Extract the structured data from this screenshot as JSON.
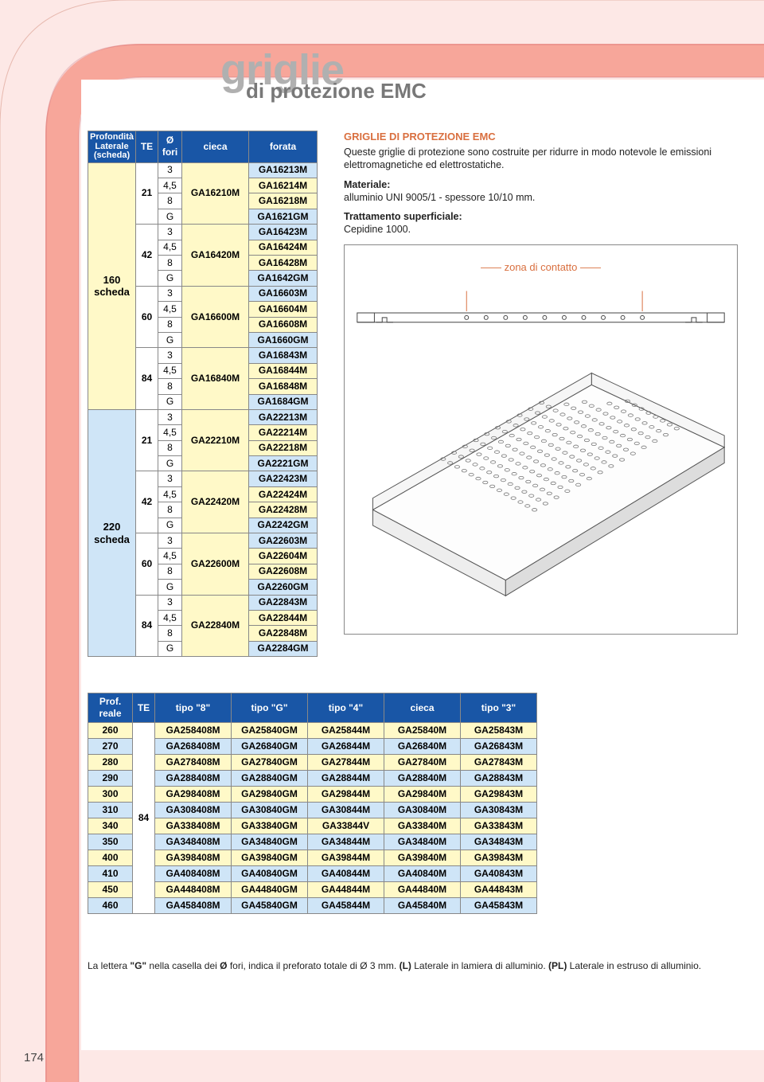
{
  "title_main": "griglie",
  "title_sub": "di protezione EMC",
  "page_number": "174",
  "table1": {
    "headers": {
      "prof": "Profondità Laterale (scheda)",
      "te": "TE",
      "fori": "Ø fori",
      "cieca": "cieca",
      "forata": "forata"
    },
    "col_widths": {
      "prof": 58,
      "te": 28,
      "fori": 30,
      "cieca": 84,
      "forata": 86
    },
    "groups": [
      {
        "prof": "160 scheda",
        "prof_bg": "#fff9c8",
        "te_rows": [
          {
            "te": "21",
            "cieca": "GA16210M",
            "forata": [
              "GA16213M",
              "GA16214M",
              "GA16218M",
              "GA1621GM"
            ]
          },
          {
            "te": "42",
            "cieca": "GA16420M",
            "forata": [
              "GA16423M",
              "GA16424M",
              "GA16428M",
              "GA1642GM"
            ]
          },
          {
            "te": "60",
            "cieca": "GA16600M",
            "forata": [
              "GA16603M",
              "GA16604M",
              "GA16608M",
              "GA1660GM"
            ]
          },
          {
            "te": "84",
            "cieca": "GA16840M",
            "forata": [
              "GA16843M",
              "GA16844M",
              "GA16848M",
              "GA1684GM"
            ]
          }
        ]
      },
      {
        "prof": "220 scheda",
        "prof_bg": "#cfe5f7",
        "te_rows": [
          {
            "te": "21",
            "cieca": "GA22210M",
            "forata": [
              "GA22213M",
              "GA22214M",
              "GA22218M",
              "GA2221GM"
            ]
          },
          {
            "te": "42",
            "cieca": "GA22420M",
            "forata": [
              "GA22423M",
              "GA22424M",
              "GA22428M",
              "GA2242GM"
            ]
          },
          {
            "te": "60",
            "cieca": "GA22600M",
            "forata": [
              "GA22603M",
              "GA22604M",
              "GA22608M",
              "GA2260GM"
            ]
          },
          {
            "te": "84",
            "cieca": "GA22840M",
            "forata": [
              "GA22843M",
              "GA22844M",
              "GA22848M",
              "GA2284GM"
            ]
          }
        ]
      }
    ],
    "fori_seq": [
      "3",
      "4,5",
      "8",
      "G"
    ],
    "row_bg_seq": [
      "#cfe5f7",
      "#fff9c8",
      "#fff9c8",
      "#cfe5f7"
    ]
  },
  "table2": {
    "headers": {
      "prof": "Prof. reale",
      "te": "TE",
      "t8": "tipo \"8\"",
      "tg": "tipo \"G\"",
      "t4": "tipo \"4\"",
      "cieca": "cieca",
      "t3": "tipo \"3\""
    },
    "te": "84",
    "col_widths": {
      "prof": 56,
      "te": 28,
      "data": 96
    },
    "rows": [
      {
        "prof": "260",
        "bg": "#fff9c8",
        "d": [
          "GA258408M",
          "GA25840GM",
          "GA25844M",
          "GA25840M",
          "GA25843M"
        ]
      },
      {
        "prof": "270",
        "bg": "#cfe5f7",
        "d": [
          "GA268408M",
          "GA26840GM",
          "GA26844M",
          "GA26840M",
          "GA26843M"
        ]
      },
      {
        "prof": "280",
        "bg": "#fff9c8",
        "d": [
          "GA278408M",
          "GA27840GM",
          "GA27844M",
          "GA27840M",
          "GA27843M"
        ]
      },
      {
        "prof": "290",
        "bg": "#cfe5f7",
        "d": [
          "GA288408M",
          "GA28840GM",
          "GA28844M",
          "GA28840M",
          "GA28843M"
        ]
      },
      {
        "prof": "300",
        "bg": "#fff9c8",
        "d": [
          "GA298408M",
          "GA29840GM",
          "GA29844M",
          "GA29840M",
          "GA29843M"
        ]
      },
      {
        "prof": "310",
        "bg": "#cfe5f7",
        "d": [
          "GA308408M",
          "GA30840GM",
          "GA30844M",
          "GA30840M",
          "GA30843M"
        ]
      },
      {
        "prof": "340",
        "bg": "#fff9c8",
        "d": [
          "GA338408M",
          "GA33840GM",
          "GA33844V",
          "GA33840M",
          "GA33843M"
        ]
      },
      {
        "prof": "350",
        "bg": "#cfe5f7",
        "d": [
          "GA348408M",
          "GA34840GM",
          "GA34844M",
          "GA34840M",
          "GA34843M"
        ]
      },
      {
        "prof": "400",
        "bg": "#fff9c8",
        "d": [
          "GA398408M",
          "GA39840GM",
          "GA39844M",
          "GA39840M",
          "GA39843M"
        ]
      },
      {
        "prof": "410",
        "bg": "#cfe5f7",
        "d": [
          "GA408408M",
          "GA40840GM",
          "GA40844M",
          "GA40840M",
          "GA40843M"
        ]
      },
      {
        "prof": "450",
        "bg": "#fff9c8",
        "d": [
          "GA448408M",
          "GA44840GM",
          "GA44844M",
          "GA44840M",
          "GA44843M"
        ]
      },
      {
        "prof": "460",
        "bg": "#cfe5f7",
        "d": [
          "GA458408M",
          "GA45840GM",
          "GA45844M",
          "GA45840M",
          "GA45843M"
        ]
      }
    ]
  },
  "right": {
    "title": "GRIGLIE DI PROTEZIONE EMC",
    "p1": "Queste griglie di protezione sono costruite per ridurre in modo notevole le emissioni elettromagnetiche ed elettrostatiche.",
    "mat_label": "Materiale:",
    "mat_val": "alluminio UNI 9005/1 - spessore 10/10 mm.",
    "trat_label": "Trattamento superficiale:",
    "trat_val": "Cepidine 1000.",
    "zona": "zona di contatto"
  },
  "footnote_parts": {
    "a": "La lettera ",
    "b": "\"G\"",
    "c": " nella casella dei ",
    "d": "Ø",
    "e": " fori, indica il preforato totale di Ø 3 mm. ",
    "f": "(L)",
    "g": " Laterale in lamiera di alluminio. ",
    "h": "(PL)",
    "i": " Laterale in estruso di alluminio."
  },
  "colors": {
    "page_bg": "#fde8e6",
    "arc": "#f7a69a",
    "header_blue": "#1956a6",
    "yellow": "#fff9c8",
    "blue": "#cfe5f7",
    "accent": "#d96f3f"
  }
}
